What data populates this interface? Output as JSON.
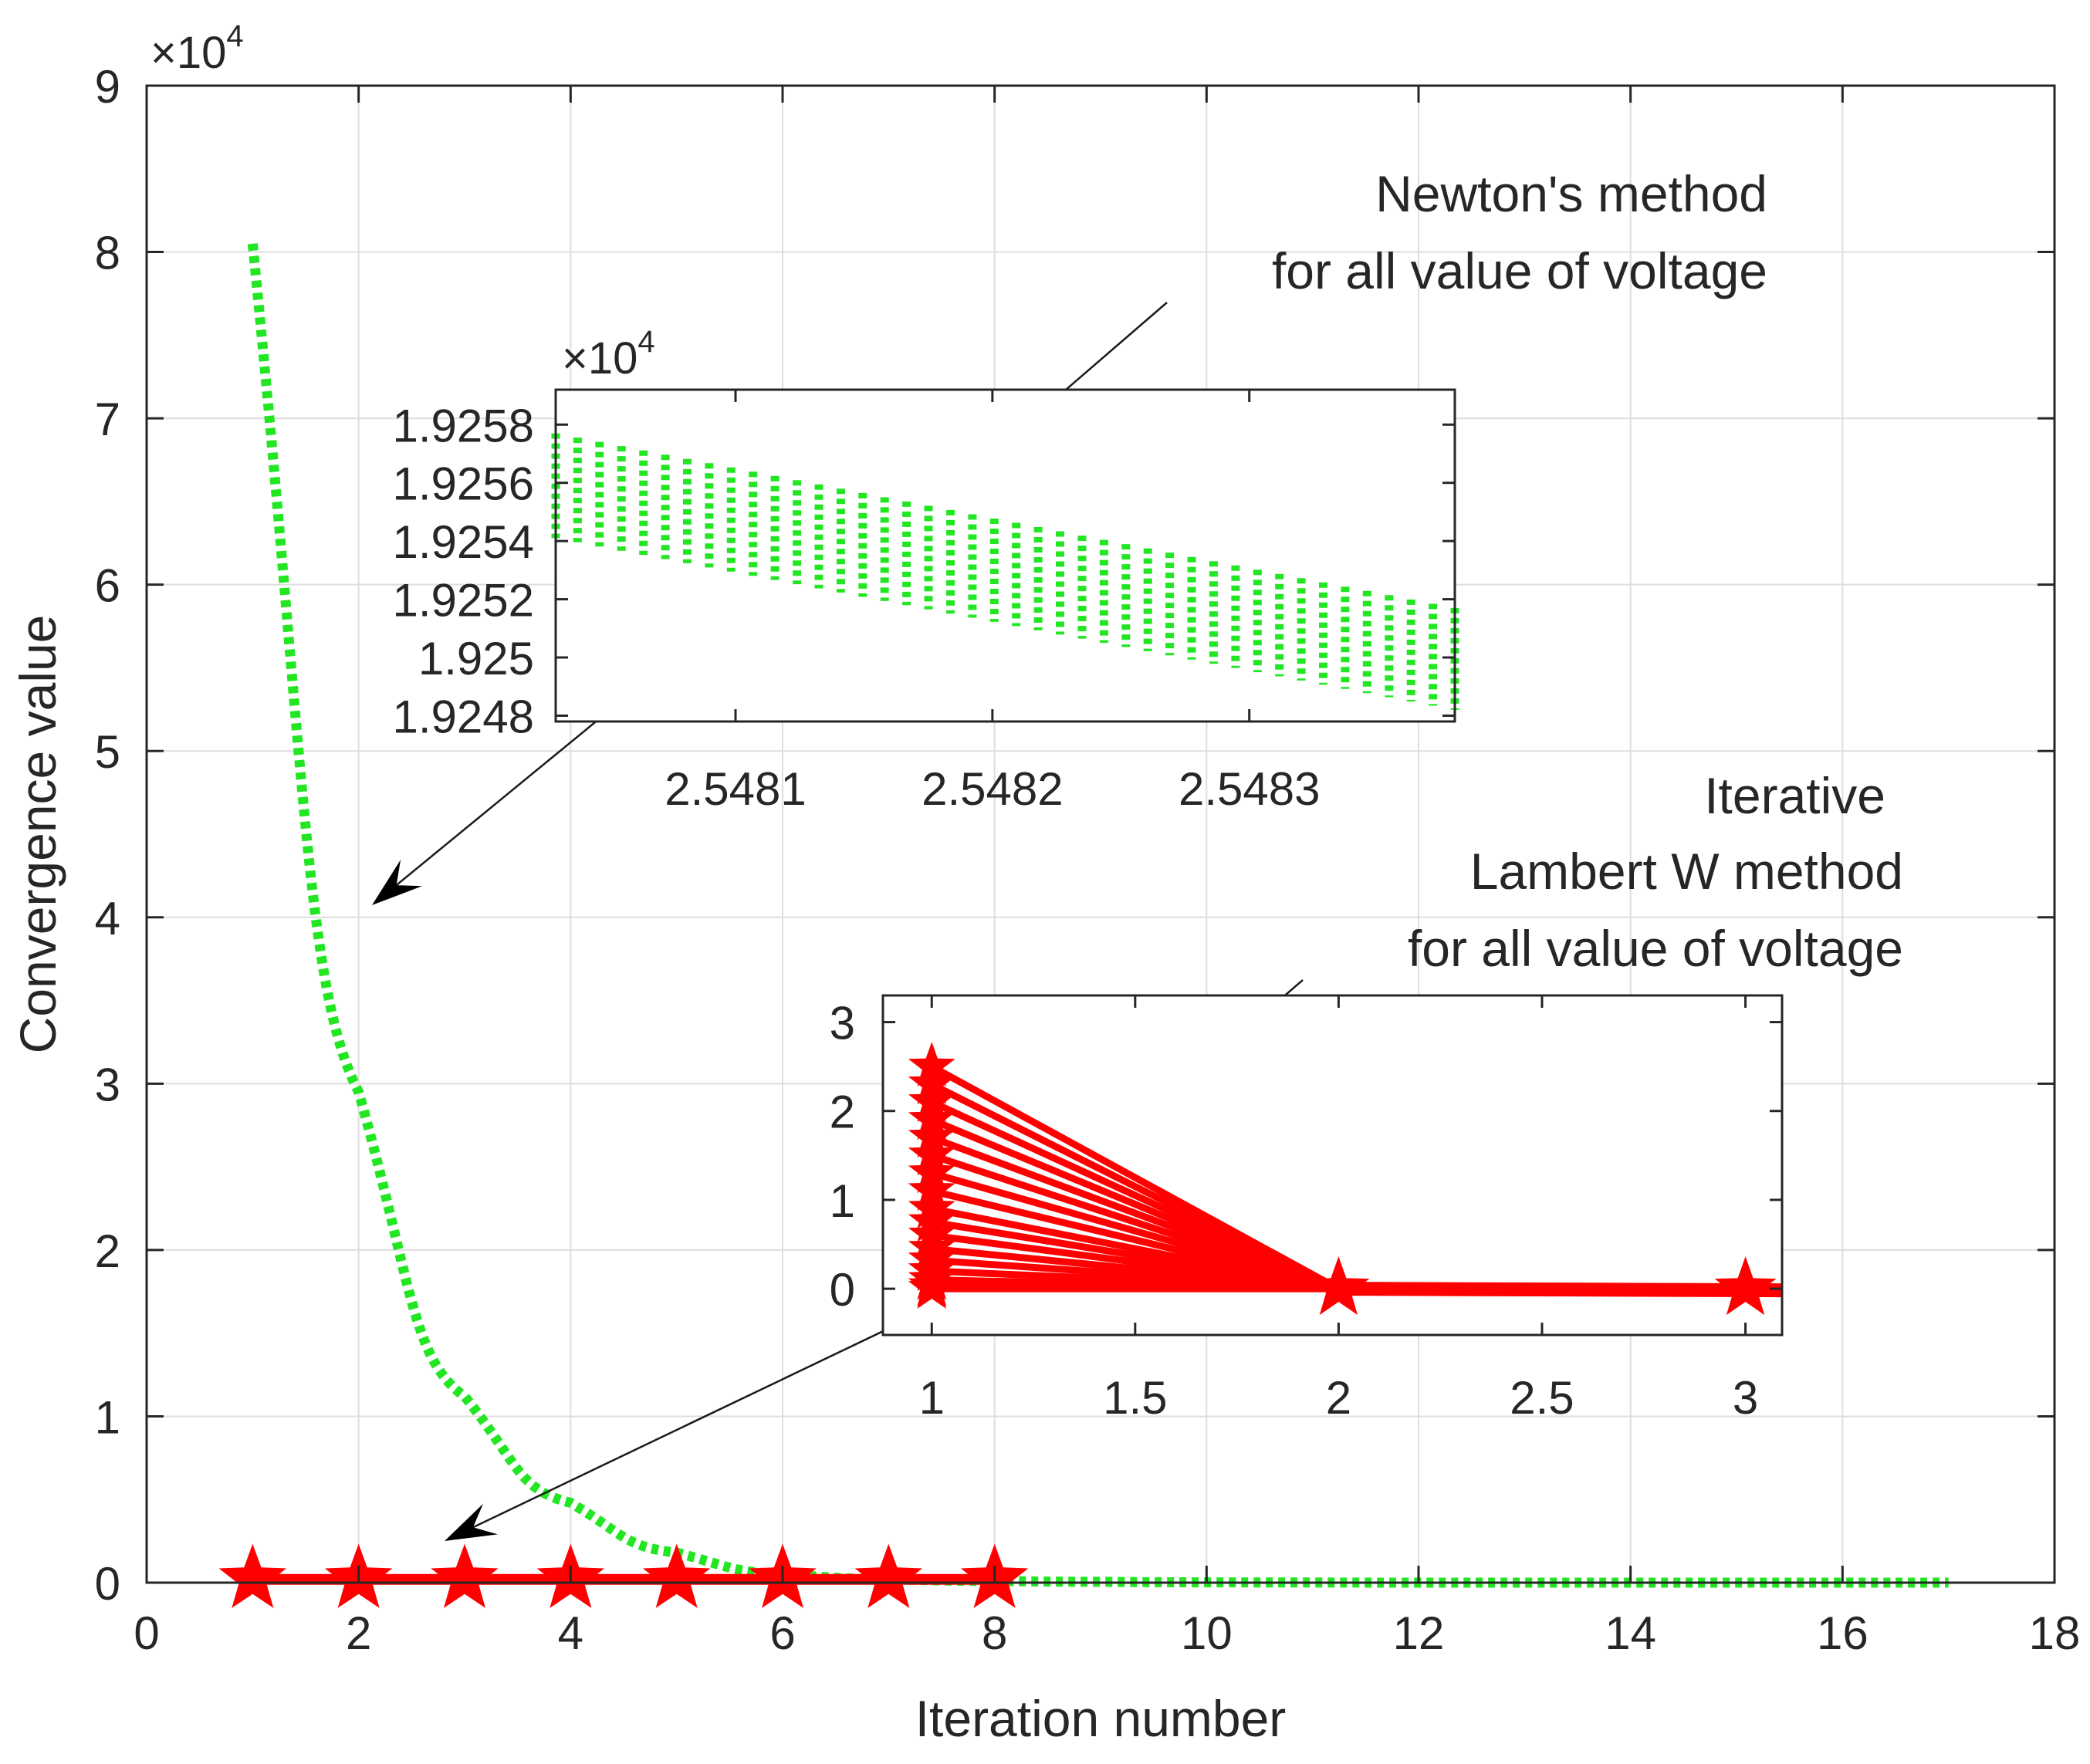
{
  "colors": {
    "newton": "#22e622",
    "lambert": "#ff0000",
    "grid": "#dedede",
    "axis": "#262626"
  },
  "chart_data": [
    {
      "id": "main",
      "type": "line",
      "xlabel": "Iteration number",
      "ylabel": "Convergence value",
      "exponent_label": "×10",
      "exponent_power": "4",
      "xlim": [
        0,
        18
      ],
      "ylim": [
        0,
        9
      ],
      "y_scale_factor": 10000,
      "grid": true,
      "xticks": [
        0,
        2,
        4,
        6,
        8,
        10,
        12,
        14,
        16,
        18
      ],
      "xtick_labels": [
        "0",
        "2",
        "4",
        "6",
        "8",
        "10",
        "12",
        "14",
        "16",
        "18"
      ],
      "yticks": [
        0,
        1,
        2,
        3,
        4,
        5,
        6,
        7,
        8,
        9
      ],
      "ytick_labels": [
        "0",
        "1",
        "2",
        "3",
        "4",
        "5",
        "6",
        "7",
        "8",
        "9"
      ],
      "series": [
        {
          "name": "Newton's method for all value of voltage",
          "style": "dotted",
          "x": [
            1,
            2,
            3,
            4,
            5,
            6,
            7,
            8,
            9,
            10,
            11,
            12,
            13,
            14,
            15,
            16,
            17
          ],
          "y": [
            8.05,
            2.95,
            1.12,
            0.48,
            0.18,
            0.05,
            0.02,
            0.01,
            0.005,
            0.002,
            0.001,
            0,
            0,
            0,
            0,
            0,
            0
          ]
        },
        {
          "name": "Iterative Lambert W method for all value of voltage",
          "style": "solid-star",
          "x": [
            1,
            2,
            3,
            4,
            5,
            6,
            7,
            8
          ],
          "y": [
            0.02,
            0.02,
            0.02,
            0.02,
            0.02,
            0.02,
            0.02,
            0.02
          ]
        }
      ]
    },
    {
      "id": "inset_newton",
      "type": "line",
      "exponent_label": "×10",
      "exponent_power": "4",
      "xlim": [
        2.54803,
        2.54838
      ],
      "ylim": [
        1.92478,
        1.92592
      ],
      "xticks": [
        2.5481,
        2.5482,
        2.5483
      ],
      "xtick_labels": [
        "2.5481",
        "2.5482",
        "2.5483"
      ],
      "yticks": [
        1.9248,
        1.925,
        1.9252,
        1.9254,
        1.9256,
        1.9258
      ],
      "ytick_labels": [
        "1.9248",
        "1.925",
        "1.9252",
        "1.9254",
        "1.9256",
        "1.9258"
      ],
      "band": {
        "x": [
          2.54803,
          2.54838
        ],
        "y_top": [
          1.92577,
          1.92517
        ],
        "y_bottom": [
          1.92541,
          1.92482
        ],
        "count": 42
      }
    },
    {
      "id": "inset_lambert",
      "type": "line",
      "xlim": [
        0.88,
        3.09
      ],
      "ylim": [
        -0.52,
        3.3
      ],
      "xticks": [
        1,
        1.5,
        2,
        2.5,
        3
      ],
      "xtick_labels": [
        "1",
        "1.5",
        "2",
        "2.5",
        "3"
      ],
      "yticks": [
        0,
        1,
        2,
        3
      ],
      "ytick_labels": [
        "0",
        "1",
        "2",
        "3"
      ],
      "series_start_values": [
        2.5,
        2.3,
        2.1,
        1.9,
        1.7,
        1.5,
        1.3,
        1.1,
        0.9,
        0.75,
        0.6,
        0.45,
        0.32,
        0.2,
        0.1,
        0.03,
        0
      ],
      "x": [
        1,
        2,
        3
      ],
      "end_values": [
        0,
        0
      ]
    }
  ],
  "annotations": {
    "newton_line1": "Newton's method",
    "newton_line2": "for all value of voltage",
    "lambert_line1": "Iterative",
    "lambert_line2": "Lambert W method",
    "lambert_line3": "for all value of voltage"
  }
}
